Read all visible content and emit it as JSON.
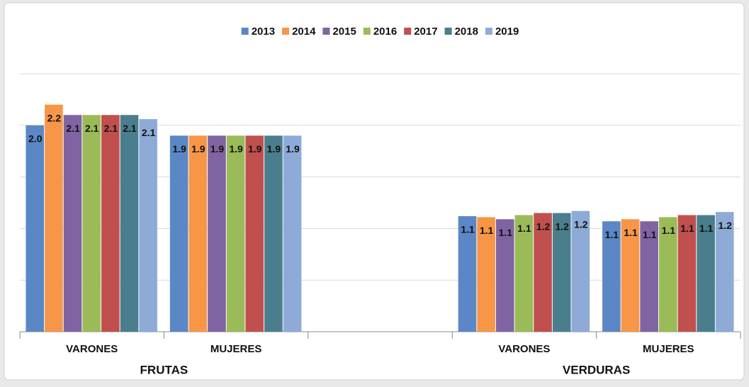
{
  "chart_data": {
    "type": "bar",
    "categories": [
      "VARONES",
      "MUJERES",
      null,
      "VARONES",
      "MUJERES"
    ],
    "group_labels": [
      "FRUTAS",
      "VERDURAS"
    ],
    "series": [
      {
        "name": "2013",
        "color": "#5b87c6",
        "values": [
          2.0,
          1.9,
          null,
          1.12,
          1.07
        ],
        "value_labels": [
          "2.0",
          "1.9",
          null,
          "1.1",
          "1.1"
        ]
      },
      {
        "name": "2014",
        "color": "#f79646",
        "values": [
          2.2,
          1.9,
          null,
          1.11,
          1.09
        ],
        "value_labels": [
          "2.2",
          "1.9",
          null,
          "1.1",
          "1.1"
        ]
      },
      {
        "name": "2015",
        "color": "#8064a2",
        "values": [
          2.1,
          1.9,
          null,
          1.09,
          1.07
        ],
        "value_labels": [
          "2.1",
          "1.9",
          null,
          "1.1",
          "1.1"
        ]
      },
      {
        "name": "2016",
        "color": "#9bbb59",
        "values": [
          2.1,
          1.9,
          null,
          1.13,
          1.11
        ],
        "value_labels": [
          "2.1",
          "1.9",
          null,
          "1.1",
          "1.1"
        ]
      },
      {
        "name": "2017",
        "color": "#c0504d",
        "values": [
          2.1,
          1.9,
          null,
          1.15,
          1.13
        ],
        "value_labels": [
          "2.1",
          "1.9",
          null,
          "1.2",
          "1.1"
        ]
      },
      {
        "name": "2018",
        "color": "#4a7e8c",
        "values": [
          2.1,
          1.9,
          null,
          1.15,
          1.13
        ],
        "value_labels": [
          "2.1",
          "1.9",
          null,
          "1.2",
          "1.1"
        ]
      },
      {
        "name": "2019",
        "color": "#8eabd8",
        "values": [
          2.06,
          1.9,
          null,
          1.17,
          1.16
        ],
        "value_labels": [
          "2.1",
          "1.9",
          null,
          "1.2",
          "1.2"
        ]
      }
    ],
    "ylim": [
      0,
      2.5
    ],
    "yticks": [
      0,
      0.5,
      1,
      1.5,
      2,
      2.5
    ],
    "grid": true,
    "legend": "top"
  }
}
